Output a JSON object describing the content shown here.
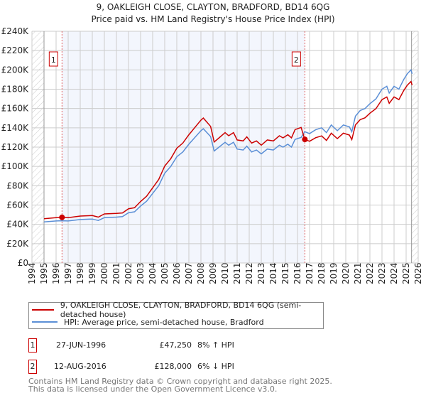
{
  "chart_data": {
    "type": "line",
    "title": "9, OAKLEIGH CLOSE, CLAYTON, BRADFORD, BD14 6QG",
    "subtitle": "Price paid vs. HM Land Registry's House Price Index (HPI)",
    "xlim": [
      1994,
      2026
    ],
    "ylim": [
      0,
      240000
    ],
    "x_ticks": [
      "1994",
      "1995",
      "1996",
      "1997",
      "1998",
      "1999",
      "2000",
      "2001",
      "2002",
      "2003",
      "2004",
      "2005",
      "2006",
      "2007",
      "2008",
      "2009",
      "2010",
      "2011",
      "2012",
      "2013",
      "2014",
      "2015",
      "2016",
      "2017",
      "2018",
      "2019",
      "2020",
      "2021",
      "2022",
      "2023",
      "2024",
      "2025",
      "2026"
    ],
    "y_ticks": [
      "£0",
      "£20K",
      "£40K",
      "£60K",
      "£80K",
      "£100K",
      "£120K",
      "£140K",
      "£160K",
      "£180K",
      "£200K",
      "£220K",
      "£240K"
    ],
    "x": [
      1995,
      1996,
      1996.5,
      1997,
      1998,
      1999,
      1999.5,
      2000,
      2001,
      2001.5,
      2002,
      2002.5,
      2003,
      2003.5,
      2004,
      2004.5,
      2005,
      2005.5,
      2006,
      2006.5,
      2007,
      2007.5,
      2008,
      2008.2,
      2008.5,
      2008.8,
      2009.1,
      2009.5,
      2010,
      2010.3,
      2010.7,
      2011,
      2011.5,
      2011.8,
      2012.2,
      2012.6,
      2013,
      2013.5,
      2014,
      2014.5,
      2014.8,
      2015.2,
      2015.5,
      2015.8,
      2016.3,
      2016.6,
      2017,
      2017.5,
      2018,
      2018.4,
      2018.8,
      2019.3,
      2019.8,
      2020.3,
      2020.5,
      2020.8,
      2021.2,
      2021.6,
      2022,
      2022.5,
      2023,
      2023.4,
      2023.6,
      2024,
      2024.4,
      2024.8,
      2025.1,
      2025.4,
      2025.5
    ],
    "series": [
      {
        "name": "9, OAKLEIGH CLOSE, CLAYTON, BRADFORD, BD14 6QG (semi-detached house)",
        "color": "#cc0000",
        "values": [
          45.9,
          47.0,
          47.2,
          47.0,
          48.6,
          49.1,
          47.5,
          50.8,
          51.3,
          51.8,
          56.2,
          57.2,
          63.7,
          69.1,
          77.8,
          86.4,
          100.4,
          108,
          118.8,
          124.2,
          132.8,
          140.4,
          148,
          150.1,
          145.8,
          141.5,
          125.3,
          129.6,
          135,
          131.8,
          135,
          127.4,
          126.4,
          130.7,
          124.2,
          126.4,
          122,
          127.4,
          126.4,
          131.8,
          129.6,
          132.8,
          129.6,
          138.2,
          140.4,
          128,
          126,
          129.7,
          131.6,
          126.9,
          134.4,
          128.8,
          134.4,
          132.5,
          127.8,
          142.9,
          148.5,
          150.4,
          155.1,
          159.8,
          169.2,
          172,
          165.4,
          172,
          169.2,
          178.6,
          184.2,
          188,
          184.2
        ]
      },
      {
        "name": "HPI: Average price, semi-detached house, Bradford",
        "color": "#5b8fd6",
        "values": [
          42.5,
          43.5,
          43.7,
          43.5,
          45,
          45.5,
          44,
          47,
          47.5,
          48,
          52,
          53,
          59,
          64,
          72,
          80,
          93,
          100,
          110,
          115,
          123,
          130,
          137,
          139,
          135,
          131,
          116,
          120,
          125,
          122,
          125,
          118,
          117,
          121,
          115,
          117,
          113,
          118,
          117,
          122,
          120,
          123,
          120,
          128,
          130,
          136,
          134,
          138,
          140,
          135,
          143,
          137,
          143,
          141,
          136,
          152,
          158,
          160,
          165,
          170,
          180,
          183,
          176,
          183,
          180,
          190,
          196,
          200,
          196
        ]
      }
    ],
    "value_unit": "£K",
    "sales": [
      {
        "label": "1",
        "date": "27-JUN-1996",
        "x": 1996.49,
        "price": "£47,250",
        "value": 47.25,
        "delta": "8% ↑ HPI"
      },
      {
        "label": "2",
        "date": "12-AUG-2016",
        "x": 2016.61,
        "price": "£128,000",
        "value": 128,
        "delta": "6% ↓ HPI"
      }
    ],
    "legend_placement": "below",
    "grid": true
  },
  "footer": [
    "Contains HM Land Registry data © Crown copyright and database right 2025.",
    "This data is licensed under the Open Government Licence v3.0."
  ]
}
